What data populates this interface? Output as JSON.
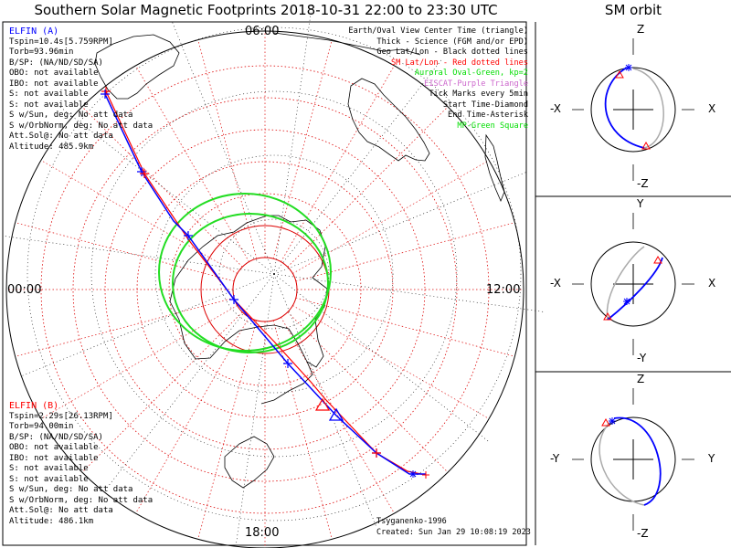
{
  "title": "Southern Solar Magnetic Footprints 2018-10-31 22:00 to 23:30 UTC",
  "orbit_title": "SM orbit",
  "elfin_a": {
    "name": "ELFIN (A)",
    "lines": [
      "Tspin=10.4s[5.759RPM]",
      "Torb=93.96min",
      "B/SP: (NA/ND/SD/SA)",
      "OBO: not available",
      "IBO: not available",
      "S: not available",
      "S: not available",
      "S w/Sun, deg: No att data",
      "S w/OrbNorm, deg: No att data",
      "Att.Sol@: No att data",
      "Altitude: 485.9km"
    ],
    "color": "#0000ff"
  },
  "elfin_b": {
    "name": "ELFIN (B)",
    "lines": [
      "Tspin=2.29s[26.13RPM]",
      "Torb=94.00min",
      "B/SP: (NA/ND/SD/SA)",
      "OBO: not available",
      "IBO: not available",
      "S: not available",
      "S: not available",
      "S w/Sun, deg: No att data",
      "S w/OrbNorm, deg: No att data",
      "Att.Sol@: No att data",
      "Altitude: 486.1km"
    ],
    "color": "#ff0000"
  },
  "legend": [
    {
      "text": "Earth/Oval View Center Time (triangle)",
      "color": "#000000"
    },
    {
      "text": "Thick - Science (FGM and/or EPD)",
      "color": "#000000"
    },
    {
      "text": "Geo Lat/Lon - Black dotted lines",
      "color": "#000000"
    },
    {
      "text": "SM Lat/Lon - Red dotted lines",
      "color": "#ff0000"
    },
    {
      "text": "Auroral Oval-Green, kp=2",
      "color": "#00dd00"
    },
    {
      "text": "EISCAT-Purple Triangle",
      "color": "#cc66cc"
    },
    {
      "text": "Tick Marks every 5min",
      "color": "#000000"
    },
    {
      "text": "Start Time-Diamond",
      "color": "#000000"
    },
    {
      "text": "End Time-Asterisk",
      "color": "#000000"
    },
    {
      "text": "MP-Green Square",
      "color": "#00dd00"
    }
  ],
  "mlt_labels": {
    "top": "06:00",
    "left": "00:00",
    "right": "12:00",
    "bottom": "18:00"
  },
  "credit": "Tsyganenko-1996",
  "created": "Created: Sun Jan 29 10:08:19 2023",
  "panels": [
    {
      "top_label": "Z",
      "bottom_label": "-Z",
      "left_label": "-X",
      "right_label": "X"
    },
    {
      "top_label": "Y",
      "bottom_label": "-Y",
      "left_label": "-X",
      "right_label": "X"
    },
    {
      "top_label": "Z",
      "bottom_label": "-Z",
      "left_label": "-Y",
      "right_label": "Y"
    }
  ],
  "colors": {
    "elfin_a": "#0000ff",
    "elfin_b": "#ff0000",
    "oval": "#22dd22",
    "sm_grid": "#dd0000",
    "orbit_back": "#aaaaaa"
  }
}
